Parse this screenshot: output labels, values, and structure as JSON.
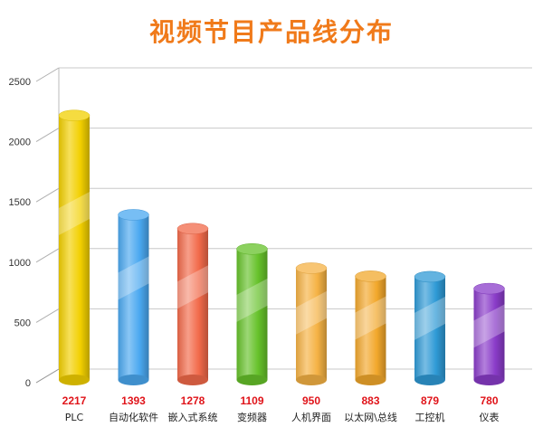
{
  "chart_data": {
    "type": "bar",
    "title": "视频节目产品线分布",
    "categories": [
      "PLC",
      "自动化软件",
      "嵌入式系统",
      "变频器",
      "人机界面",
      "以太网\\总线",
      "工控机",
      "仪表"
    ],
    "values": [
      2217,
      1393,
      1278,
      1109,
      950,
      883,
      879,
      780
    ],
    "y_ticks": [
      "0",
      "500",
      "1000",
      "1500",
      "2000",
      "2500"
    ],
    "ylim": [
      0,
      2500
    ],
    "grid": true,
    "legend": "none",
    "value_label_color": "#e0141a",
    "bar_colors": [
      "#f2d000",
      "#4aa8f0",
      "#f26a4a",
      "#66c22a",
      "#f5b244",
      "#f2a82c",
      "#2f9ad6",
      "#8a3cc9"
    ]
  }
}
